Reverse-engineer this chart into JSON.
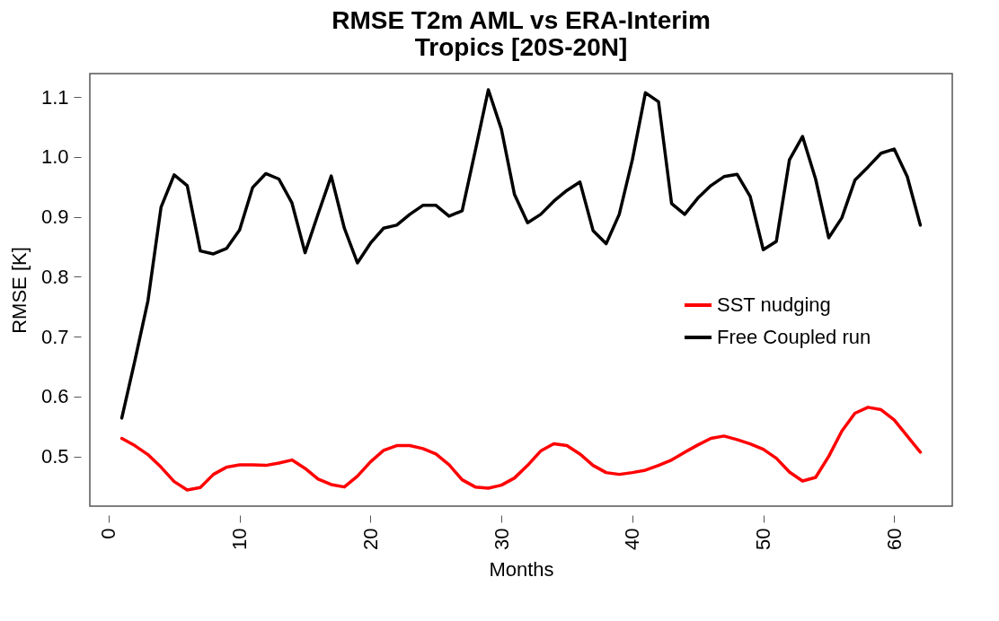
{
  "chart_data": {
    "type": "line",
    "title": "RMSE T2m AML vs ERA-Interim\nTropics [20S-20N]",
    "xlabel": "Months",
    "ylabel": "RMSE [K]",
    "x": [
      1,
      2,
      3,
      4,
      5,
      6,
      7,
      8,
      9,
      10,
      11,
      12,
      13,
      14,
      15,
      16,
      17,
      18,
      19,
      20,
      21,
      22,
      23,
      24,
      25,
      26,
      27,
      28,
      29,
      30,
      31,
      32,
      33,
      34,
      35,
      36,
      37,
      38,
      39,
      40,
      41,
      42,
      43,
      44,
      45,
      46,
      47,
      48,
      49,
      50,
      51,
      52,
      53,
      54,
      55,
      56,
      57,
      58,
      59,
      60,
      61,
      62
    ],
    "series": [
      {
        "name": "SST nudging",
        "color": "#ff0000",
        "values": [
          0.53,
          0.518,
          0.503,
          0.482,
          0.458,
          0.444,
          0.448,
          0.47,
          0.482,
          0.486,
          0.486,
          0.485,
          0.489,
          0.494,
          0.48,
          0.462,
          0.453,
          0.449,
          0.467,
          0.491,
          0.51,
          0.518,
          0.518,
          0.513,
          0.504,
          0.486,
          0.461,
          0.449,
          0.447,
          0.452,
          0.464,
          0.485,
          0.509,
          0.521,
          0.518,
          0.504,
          0.485,
          0.473,
          0.47,
          0.473,
          0.477,
          0.485,
          0.494,
          0.507,
          0.519,
          0.53,
          0.534,
          0.528,
          0.521,
          0.512,
          0.497,
          0.474,
          0.459,
          0.465,
          0.5,
          0.542,
          0.572,
          0.582,
          0.578,
          0.561,
          0.534,
          0.507
        ]
      },
      {
        "name": "Free Coupled run",
        "color": "#000000",
        "values": [
          0.564,
          0.66,
          0.76,
          0.916,
          0.97,
          0.952,
          0.843,
          0.838,
          0.847,
          0.878,
          0.949,
          0.972,
          0.963,
          0.923,
          0.84,
          0.905,
          0.968,
          0.881,
          0.823,
          0.856,
          0.881,
          0.886,
          0.904,
          0.919,
          0.919,
          0.901,
          0.91,
          1.01,
          1.112,
          1.046,
          0.937,
          0.89,
          0.904,
          0.926,
          0.944,
          0.958,
          0.877,
          0.855,
          0.904,
          0.995,
          1.107,
          1.092,
          0.922,
          0.904,
          0.931,
          0.952,
          0.967,
          0.971,
          0.934,
          0.845,
          0.859,
          0.995,
          1.034,
          0.963,
          0.865,
          0.898,
          0.961,
          0.983,
          1.006,
          1.013,
          0.967,
          0.886
        ]
      }
    ],
    "xlim": [
      -1.44,
      64.44
    ],
    "xticks": [
      0,
      10,
      20,
      30,
      40,
      50,
      60
    ],
    "ylim": [
      0.417,
      1.139
    ],
    "yticks": [
      0.5,
      0.6,
      0.7,
      0.8,
      0.9,
      {
        "value": 1,
        "label": "1.0"
      },
      1.1
    ],
    "legend": "right",
    "grid": false,
    "marker": "none",
    "line_style": "solid"
  }
}
